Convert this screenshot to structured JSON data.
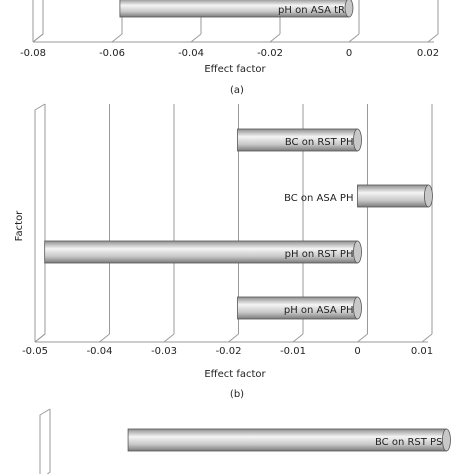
{
  "chart_data": [
    {
      "type": "bar",
      "orientation": "horizontal",
      "categories": [
        "pH on ASA tR"
      ],
      "values": [
        -0.058
      ],
      "xlim": [
        -0.08,
        0.02
      ],
      "xticks": [
        -0.08,
        -0.06,
        -0.04,
        -0.02,
        0,
        0.02
      ],
      "xlabel": "Effect factor",
      "caption": "(a)",
      "grid": true,
      "color": "#c8c8c8"
    },
    {
      "type": "bar",
      "orientation": "horizontal",
      "categories": [
        "BC on RST PH",
        "BC on ASA PH",
        "pH on RST PH",
        "pH on ASA PH"
      ],
      "values": [
        -0.0186,
        0.011,
        -0.0485,
        -0.0186
      ],
      "xlim": [
        -0.05,
        0.01
      ],
      "xticks": [
        -0.05,
        -0.04,
        -0.03,
        -0.02,
        -0.01,
        0,
        0.01
      ],
      "xlabel": "Effect factor",
      "ylabel": "Factor",
      "caption": "(b)",
      "grid": true,
      "color": "#c8c8c8"
    },
    {
      "type": "bar",
      "orientation": "horizontal",
      "categories": [
        "BC on RST PS"
      ],
      "values": [
        -0.047
      ],
      "xlim": [
        -0.06,
        0.002
      ],
      "grid": true,
      "color": "#c8c8c8"
    }
  ]
}
